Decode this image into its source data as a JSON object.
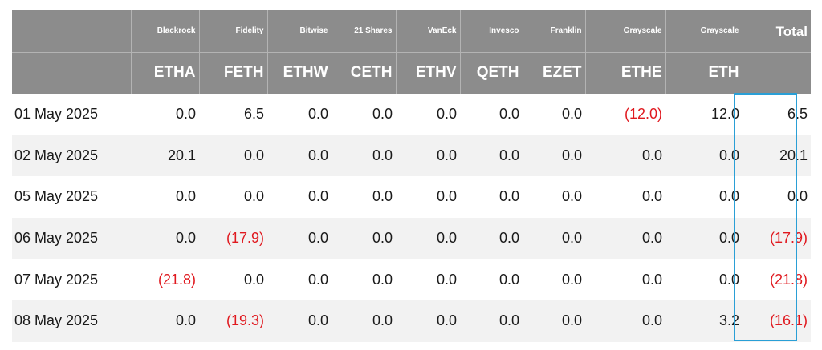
{
  "columns": [
    {
      "issuer": "",
      "ticker": ""
    },
    {
      "issuer": "Blackrock",
      "ticker": "ETHA"
    },
    {
      "issuer": "Fidelity",
      "ticker": "FETH"
    },
    {
      "issuer": "Bitwise",
      "ticker": "ETHW"
    },
    {
      "issuer": "21 Shares",
      "ticker": "CETH"
    },
    {
      "issuer": "VanEck",
      "ticker": "ETHV"
    },
    {
      "issuer": "Invesco",
      "ticker": "QETH"
    },
    {
      "issuer": "Franklin",
      "ticker": "EZET"
    },
    {
      "issuer": "Grayscale",
      "ticker": "ETHE"
    },
    {
      "issuer": "Grayscale",
      "ticker": "ETH"
    },
    {
      "issuer": "Total",
      "ticker": ""
    }
  ],
  "rows": [
    {
      "cells": [
        "01 May 2025",
        "0.0",
        "6.5",
        "0.0",
        "0.0",
        "0.0",
        "0.0",
        "0.0",
        "(12.0)",
        "12.0",
        "6.5"
      ]
    },
    {
      "cells": [
        "02 May 2025",
        "20.1",
        "0.0",
        "0.0",
        "0.0",
        "0.0",
        "0.0",
        "0.0",
        "0.0",
        "0.0",
        "20.1"
      ]
    },
    {
      "cells": [
        "05 May 2025",
        "0.0",
        "0.0",
        "0.0",
        "0.0",
        "0.0",
        "0.0",
        "0.0",
        "0.0",
        "0.0",
        "0.0"
      ]
    },
    {
      "cells": [
        "06 May 2025",
        "0.0",
        "(17.9)",
        "0.0",
        "0.0",
        "0.0",
        "0.0",
        "0.0",
        "0.0",
        "0.0",
        "(17.9)"
      ]
    },
    {
      "cells": [
        "07 May 2025",
        "(21.8)",
        "0.0",
        "0.0",
        "0.0",
        "0.0",
        "0.0",
        "0.0",
        "0.0",
        "0.0",
        "(21.8)"
      ]
    },
    {
      "cells": [
        "08 May 2025",
        "0.0",
        "(19.3)",
        "0.0",
        "0.0",
        "0.0",
        "0.0",
        "0.0",
        "0.0",
        "3.2",
        "(16.1)"
      ]
    }
  ],
  "colors": {
    "header_bg": "#8c8c8c",
    "negative": "#e0191f",
    "highlight_box": "#2a9fd6",
    "stripe": "#f2f2f2"
  }
}
